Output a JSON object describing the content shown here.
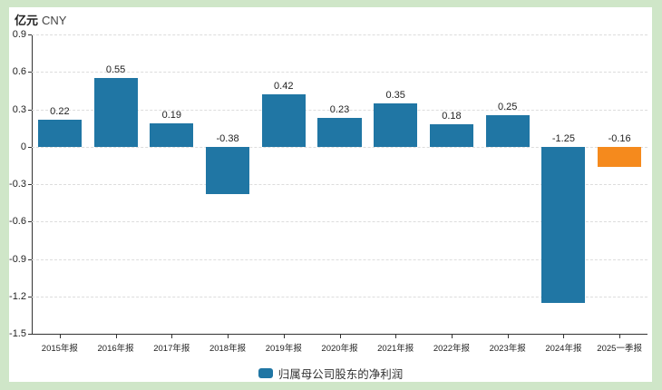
{
  "colors": {
    "frame_green": "#cfe6c8",
    "card_white": "#ffffff",
    "bar_primary": "#2076a4",
    "bar_highlight": "#f58a1d",
    "axis": "#333333",
    "grid": "#dddddd",
    "text": "#222222"
  },
  "header": {
    "unit_yi": "亿元",
    "unit_cny": "CNY"
  },
  "legend": {
    "label": "归属母公司股东的净利润"
  },
  "chart_data": {
    "type": "bar",
    "title": "",
    "xlabel": "",
    "ylabel": "亿元 CNY",
    "categories": [
      "2015年报",
      "2016年报",
      "2017年报",
      "2018年报",
      "2019年报",
      "2020年报",
      "2021年报",
      "2022年报",
      "2023年报",
      "2024年报",
      "2025一季报"
    ],
    "series": [
      {
        "name": "归属母公司股东的净利润",
        "values": [
          0.22,
          0.55,
          0.19,
          -0.38,
          0.42,
          0.23,
          0.35,
          0.18,
          0.25,
          -1.25,
          -0.16
        ]
      }
    ],
    "value_labels": [
      "0.22",
      "0.55",
      "0.19",
      "-0.38",
      "0.42",
      "0.23",
      "0.35",
      "0.18",
      "0.25",
      "-1.25",
      "-0.16"
    ],
    "bar_color_keys": [
      "bar_primary",
      "bar_primary",
      "bar_primary",
      "bar_primary",
      "bar_primary",
      "bar_primary",
      "bar_primary",
      "bar_primary",
      "bar_primary",
      "bar_primary",
      "bar_highlight"
    ],
    "ylim": [
      -1.5,
      0.9
    ],
    "yticks": [
      0.9,
      0.6,
      0.3,
      0,
      -0.3,
      -0.6,
      -0.9,
      -1.2,
      -1.5
    ],
    "ytick_labels": [
      "0.9",
      "0.6",
      "0.3",
      "0",
      "-0.3",
      "-0.6",
      "-0.9",
      "-1.2",
      "-1.5"
    ],
    "grid": true,
    "grid_style": "dashed",
    "legend_position": "bottom-center"
  }
}
